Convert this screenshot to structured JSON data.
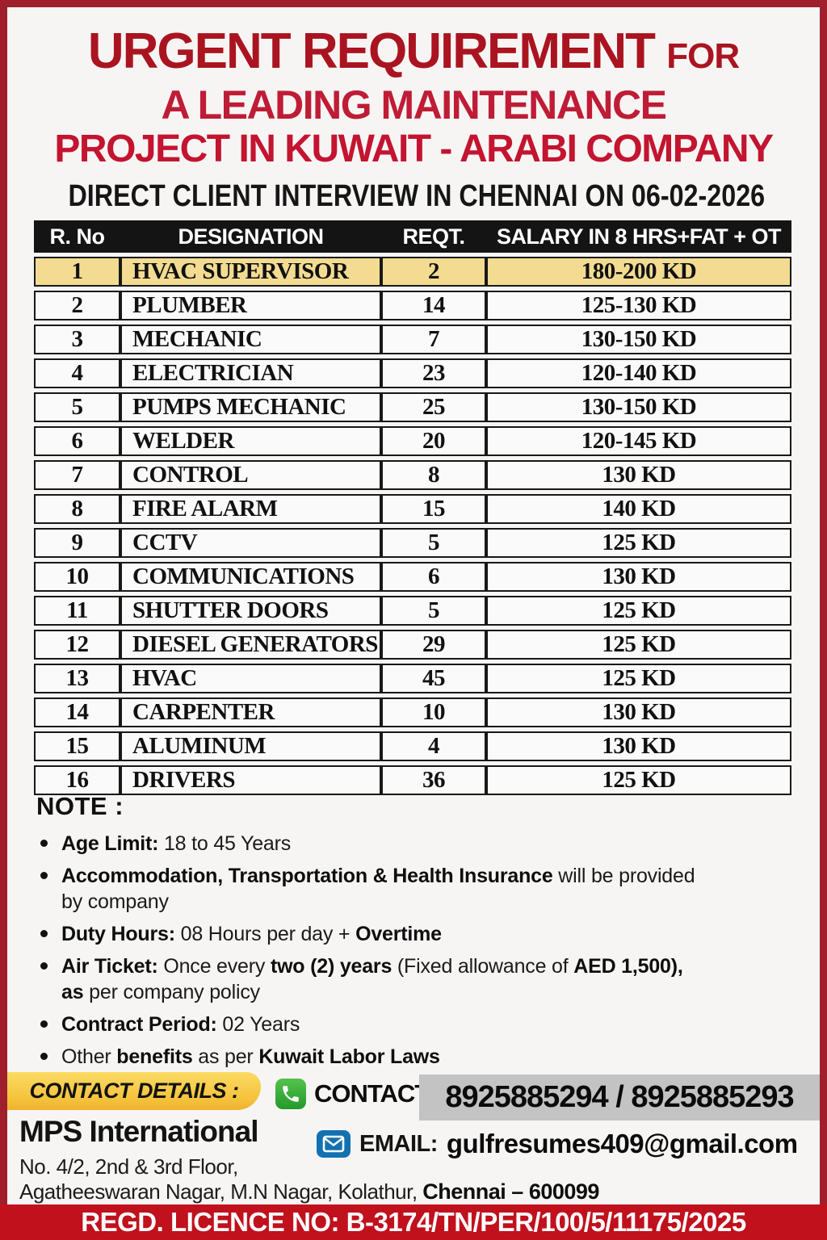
{
  "colors": {
    "border_red": "#9f1f2d",
    "banner_red": "#c0111d",
    "title_red": "#aa1420",
    "title_red2": "#bf1c36",
    "title_crimson": "#c31430",
    "highlight_yellow": "#f3dc92",
    "header_black": "#141414",
    "ribbon_yellow": "#f5c33c",
    "phone_green": "#35a42e",
    "email_blue": "#1371b0",
    "phone_bg_gray": "#c3c3c3"
  },
  "header": {
    "title_line1": "URGENT REQUIREMENT",
    "title_line1_suffix": "FOR",
    "title_line2": "A LEADING MAINTENANCE",
    "title_line3": "PROJECT IN KUWAIT - ARABI COMPANY",
    "subtitle": "DIRECT CLIENT INTERVIEW IN CHENNAI ON 06-02-2026"
  },
  "table": {
    "headers": [
      "R. No",
      "DESIGNATION",
      "REQT.",
      "SALARY IN 8 HRS+FAT + OT"
    ],
    "rows": [
      {
        "no": "1",
        "designation": "HVAC SUPERVISOR",
        "reqt": "2",
        "salary": "180-200 KD",
        "highlight": true
      },
      {
        "no": "2",
        "designation": "PLUMBER",
        "reqt": "14",
        "salary": "125-130 KD"
      },
      {
        "no": "3",
        "designation": "MECHANIC",
        "reqt": "7",
        "salary": "130-150 KD"
      },
      {
        "no": "4",
        "designation": "ELECTRICIAN",
        "reqt": "23",
        "salary": "120-140 KD"
      },
      {
        "no": "5",
        "designation": "PUMPS MECHANIC",
        "reqt": "25",
        "salary": "130-150 KD"
      },
      {
        "no": "6",
        "designation": "WELDER",
        "reqt": "20",
        "salary": "120-145 KD"
      },
      {
        "no": "7",
        "designation": "CONTROL",
        "reqt": "8",
        "salary": "130 KD"
      },
      {
        "no": "8",
        "designation": "FIRE ALARM",
        "reqt": "15",
        "salary": "140 KD"
      },
      {
        "no": "9",
        "designation": "CCTV",
        "reqt": "5",
        "salary": "125 KD"
      },
      {
        "no": "10",
        "designation": "COMMUNICATIONS",
        "reqt": "6",
        "salary": "130 KD"
      },
      {
        "no": "11",
        "designation": "SHUTTER DOORS",
        "reqt": "5",
        "salary": "125 KD"
      },
      {
        "no": "12",
        "designation": "DIESEL GENERATORS",
        "reqt": "29",
        "salary": "125 KD"
      },
      {
        "no": "13",
        "designation": "HVAC",
        "reqt": "45",
        "salary": "125 KD"
      },
      {
        "no": "14",
        "designation": "CARPENTER",
        "reqt": "10",
        "salary": "130 KD"
      },
      {
        "no": "15",
        "designation": "ALUMINUM",
        "reqt": "4",
        "salary": "130 KD"
      },
      {
        "no": "16",
        "designation": "DRIVERS",
        "reqt": "36",
        "salary": "125 KD"
      }
    ]
  },
  "notes": {
    "heading": "NOTE :",
    "items": [
      {
        "segments": [
          {
            "bold": true,
            "text": "Age Limit: "
          },
          {
            "bold": false,
            "text": "18 to 45 Years"
          }
        ]
      },
      {
        "segments": [
          {
            "bold": true,
            "text": "Accommodation, Transportation & Health Insurance"
          },
          {
            "bold": false,
            "text": " will be provided"
          },
          {
            "br": true
          },
          {
            "bold": false,
            "text": "by company"
          }
        ]
      },
      {
        "segments": [
          {
            "bold": true,
            "text": "Duty Hours: "
          },
          {
            "bold": false,
            "text": "08 Hours per day + "
          },
          {
            "bold": true,
            "text": "Overtime"
          }
        ]
      },
      {
        "segments": [
          {
            "bold": true,
            "text": "Air Ticket: "
          },
          {
            "bold": false,
            "text": "Once every "
          },
          {
            "bold": true,
            "text": "two (2) years"
          },
          {
            "bold": false,
            "text": " (Fixed allowance of "
          },
          {
            "bold": true,
            "text": "AED 1,500),"
          },
          {
            "br": true
          },
          {
            "bold": true,
            "text": "as"
          },
          {
            "bold": false,
            "text": " per company policy"
          }
        ]
      },
      {
        "segments": [
          {
            "bold": true,
            "text": "Contract Period: "
          },
          {
            "bold": false,
            "text": "02 Years"
          }
        ]
      },
      {
        "segments": [
          {
            "bold": false,
            "text": "Other "
          },
          {
            "bold": true,
            "text": "benefits"
          },
          {
            "bold": false,
            "text": " as per "
          },
          {
            "bold": true,
            "text": "Kuwait Labor Laws"
          }
        ]
      }
    ]
  },
  "contact": {
    "ribbon_label": "CONTACT DETAILS :",
    "phone_label": "CONTACT:",
    "phone_numbers": "8925885294 / 8925885293",
    "company_name": "MPS International",
    "address_line1": "No. 4/2, 2nd & 3rd Floor,",
    "address_line2": "Agatheeswaran Nagar, M.N Nagar, Kolathur, ",
    "address_line2_bold": "Chennai – 600099",
    "email_label": "EMAIL:",
    "email_address": "gulfresumes409@gmail.com"
  },
  "footer": {
    "licence_text": "REGD. LICENCE NO: B-3174/TN/PER/100/5/11175/2025"
  }
}
